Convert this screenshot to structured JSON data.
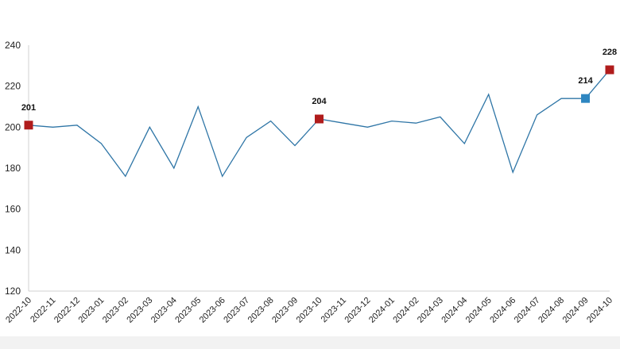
{
  "chart_data": {
    "type": "line",
    "title": "",
    "xlabel": "",
    "ylabel": "",
    "ylim": [
      120,
      240
    ],
    "yticks": [
      120,
      140,
      160,
      180,
      200,
      220,
      240
    ],
    "grid": false,
    "legend": "none",
    "categories": [
      "2022-10",
      "2022-11",
      "2022-12",
      "2023-01",
      "2023-02",
      "2023-03",
      "2023-04",
      "2023-05",
      "2023-06",
      "2023-07",
      "2023-08",
      "2023-09",
      "2023-10",
      "2023-11",
      "2023-12",
      "2024-01",
      "2024-02",
      "2024-03",
      "2024-04",
      "2024-05",
      "2024-06",
      "2024-07",
      "2024-08",
      "2024-09",
      "2024-10"
    ],
    "series": [
      {
        "values": [
          201,
          200,
          201,
          192,
          176,
          200,
          180,
          210,
          176,
          195,
          203,
          191,
          204,
          202,
          200,
          203,
          202,
          205,
          192,
          216,
          178,
          206,
          214,
          214,
          228
        ],
        "color": "#2e75a6"
      }
    ],
    "highlights": [
      {
        "index": 0,
        "label": "201",
        "color": "#b01c1c"
      },
      {
        "index": 12,
        "label": "204",
        "color": "#b01c1c"
      },
      {
        "index": 23,
        "label": "214",
        "color": "#2e86c1"
      },
      {
        "index": 24,
        "label": "228",
        "color": "#b01c1c"
      }
    ]
  }
}
